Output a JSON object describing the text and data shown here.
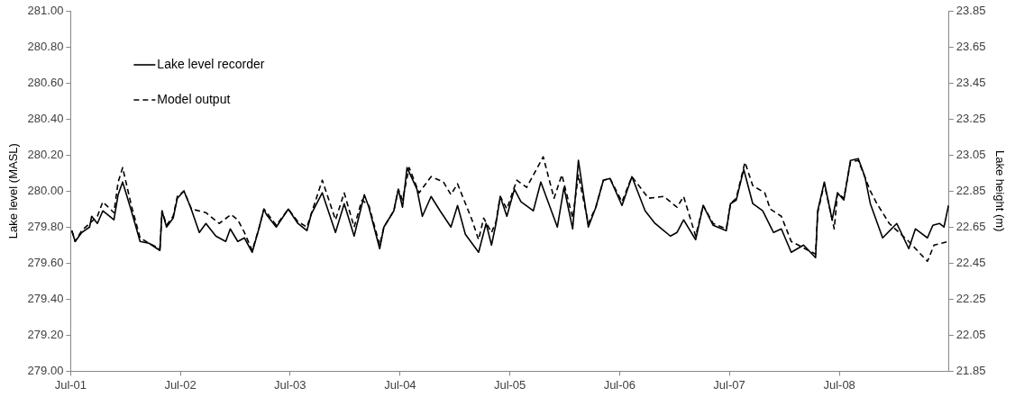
{
  "chart_data": {
    "type": "line",
    "ylabel": "Lake level (MASL)",
    "y2label": "Lake height (m)",
    "legend": "top left",
    "grid": false,
    "marker": "none",
    "xlim": [
      "2001-07-01",
      "2009-07-01"
    ],
    "xticks": [
      {
        "value": "2001-07-01",
        "label": "Jul-01"
      },
      {
        "value": "2002-07-01",
        "label": "Jul-02"
      },
      {
        "value": "2003-07-01",
        "label": "Jul-03"
      },
      {
        "value": "2004-07-01",
        "label": "Jul-04"
      },
      {
        "value": "2005-07-01",
        "label": "Jul-05"
      },
      {
        "value": "2006-07-01",
        "label": "Jul-06"
      },
      {
        "value": "2007-07-01",
        "label": "Jul-07"
      },
      {
        "value": "2008-07-01",
        "label": "Jul-08"
      }
    ],
    "ylim": [
      279,
      281
    ],
    "yticks": [
      {
        "value": 279,
        "label": "279.00"
      },
      {
        "value": 279.2,
        "label": "279.20"
      },
      {
        "value": 279.4,
        "label": "279.40"
      },
      {
        "value": 279.6,
        "label": "279.60"
      },
      {
        "value": 279.8,
        "label": "279.80"
      },
      {
        "value": 280,
        "label": "280.00"
      },
      {
        "value": 280.2,
        "label": "280.20"
      },
      {
        "value": 280.4,
        "label": "280.40"
      },
      {
        "value": 280.6,
        "label": "280.60"
      },
      {
        "value": 280.8,
        "label": "280.80"
      },
      {
        "value": 281,
        "label": "281.00"
      }
    ],
    "y2lim": [
      21.85,
      23.85
    ],
    "y2ticks": [
      21.85,
      22.05,
      22.25,
      22.45,
      22.65,
      22.85,
      23.05,
      23.25,
      23.45,
      23.65,
      23.85
    ],
    "series": [
      {
        "name": "Lake level recorder",
        "color": "#000000",
        "line_style": "solid",
        "x": [
          "2001-07-05",
          "2001-07-16",
          "2001-08-07",
          "2001-09-02",
          "2001-09-09",
          "2001-09-28",
          "2001-10-16",
          "2001-11-22",
          "2001-12-06",
          "2001-12-21",
          "2002-01-01",
          "2002-01-19",
          "2002-02-17",
          "2002-03-19",
          "2002-04-24",
          "2002-05-01",
          "2002-05-16",
          "2002-06-07",
          "2002-06-21",
          "2002-07-13",
          "2002-08-04",
          "2002-09-02",
          "2002-09-24",
          "2002-10-27",
          "2002-11-29",
          "2002-12-14",
          "2003-01-08",
          "2003-01-30",
          "2003-02-25",
          "2003-03-19",
          "2003-04-05",
          "2003-04-13",
          "2003-05-16",
          "2003-06-25",
          "2003-07-27",
          "2003-08-26",
          "2003-09-09",
          "2003-10-16",
          "2003-11-29",
          "2003-12-28",
          "2004-01-30",
          "2004-03-04",
          "2004-03-19",
          "2004-04-24",
          "2004-05-08",
          "2004-06-10",
          "2004-06-25",
          "2004-07-09",
          "2004-07-24",
          "2004-08-26",
          "2004-09-13",
          "2004-10-12",
          "2004-11-11",
          "2004-12-17",
          "2005-01-08",
          "2005-02-03",
          "2005-03-19",
          "2005-04-13",
          "2005-05-01",
          "2005-05-16",
          "2005-05-30",
          "2005-06-21",
          "2005-07-16",
          "2005-08-07",
          "2005-09-17",
          "2005-10-12",
          "2005-12-06",
          "2005-12-28",
          "2006-01-26",
          "2006-02-14",
          "2006-03-19",
          "2006-04-13",
          "2006-05-08",
          "2006-05-30",
          "2006-07-09",
          "2006-08-11",
          "2006-09-24",
          "2006-10-27",
          "2006-12-17",
          "2007-01-08",
          "2007-01-30",
          "2007-03-11",
          "2007-04-05",
          "2007-05-08",
          "2007-06-21",
          "2007-07-05",
          "2007-07-24",
          "2007-08-18",
          "2007-09-17",
          "2007-10-20",
          "2007-11-25",
          "2007-12-21",
          "2008-01-23",
          "2008-03-04",
          "2008-04-13",
          "2008-04-20",
          "2008-05-12",
          "2008-06-07",
          "2008-06-25",
          "2008-07-16",
          "2008-08-07",
          "2008-09-02",
          "2008-09-24",
          "2008-10-12",
          "2008-11-22",
          "2009-01-08",
          "2009-02-17",
          "2009-03-11",
          "2009-04-20",
          "2009-05-08",
          "2009-05-30",
          "2009-06-14",
          "2009-06-29"
        ],
        "values": [
          279.78,
          279.72,
          279.77,
          279.8,
          279.86,
          279.82,
          279.89,
          279.84,
          279.98,
          280.05,
          279.99,
          279.89,
          279.72,
          279.71,
          279.67,
          279.89,
          279.8,
          279.85,
          279.96,
          280.0,
          279.91,
          279.77,
          279.82,
          279.75,
          279.72,
          279.79,
          279.72,
          279.74,
          279.66,
          279.79,
          279.9,
          279.87,
          279.8,
          279.9,
          279.82,
          279.78,
          279.87,
          279.99,
          279.77,
          279.93,
          279.75,
          279.98,
          279.91,
          279.68,
          279.8,
          279.89,
          280.01,
          279.91,
          280.13,
          280.01,
          279.86,
          279.97,
          279.89,
          279.8,
          279.92,
          279.76,
          279.66,
          279.82,
          279.7,
          279.82,
          279.97,
          279.86,
          280.01,
          279.94,
          279.89,
          280.05,
          279.8,
          280.02,
          279.79,
          280.17,
          279.8,
          279.91,
          280.06,
          280.07,
          279.92,
          280.08,
          279.89,
          279.82,
          279.75,
          279.77,
          279.84,
          279.73,
          279.92,
          279.81,
          279.78,
          279.93,
          279.95,
          280.12,
          279.93,
          279.89,
          279.77,
          279.79,
          279.66,
          279.7,
          279.63,
          279.89,
          280.05,
          279.84,
          279.99,
          279.95,
          280.17,
          280.18,
          280.08,
          279.93,
          279.74,
          279.82,
          279.68,
          279.79,
          279.74,
          279.81,
          279.82,
          279.8,
          279.92
        ]
      },
      {
        "name": "Model output",
        "color": "#000000",
        "line_style": "dashed",
        "x": [
          "2001-07-05",
          "2001-07-16",
          "2001-08-07",
          "2001-09-02",
          "2001-09-28",
          "2001-10-16",
          "2001-11-22",
          "2001-12-06",
          "2001-12-21",
          "2002-01-01",
          "2002-01-19",
          "2002-02-17",
          "2002-03-19",
          "2002-04-24",
          "2002-05-01",
          "2002-05-16",
          "2002-06-07",
          "2002-06-21",
          "2002-07-13",
          "2002-08-07",
          "2002-09-24",
          "2002-11-07",
          "2002-12-17",
          "2003-01-08",
          "2003-01-30",
          "2003-02-25",
          "2003-03-19",
          "2003-04-05",
          "2003-05-16",
          "2003-06-25",
          "2003-07-27",
          "2003-08-26",
          "2003-10-16",
          "2003-11-29",
          "2003-12-28",
          "2004-01-30",
          "2004-02-25",
          "2004-03-19",
          "2004-04-24",
          "2004-05-08",
          "2004-06-10",
          "2004-06-25",
          "2004-07-09",
          "2004-07-31",
          "2004-09-02",
          "2004-10-12",
          "2004-11-22",
          "2004-12-17",
          "2005-01-08",
          "2005-02-25",
          "2005-03-19",
          "2005-04-05",
          "2005-05-01",
          "2005-05-16",
          "2005-05-30",
          "2005-06-21",
          "2005-07-24",
          "2005-08-26",
          "2005-10-20",
          "2005-11-25",
          "2005-12-21",
          "2006-01-26",
          "2006-02-14",
          "2006-03-19",
          "2006-04-13",
          "2006-05-08",
          "2006-05-30",
          "2006-07-09",
          "2006-08-11",
          "2006-10-05",
          "2006-11-25",
          "2007-01-08",
          "2007-01-30",
          "2007-03-11",
          "2007-04-05",
          "2007-05-08",
          "2007-06-21",
          "2007-07-05",
          "2007-07-24",
          "2007-08-22",
          "2007-09-17",
          "2007-10-27",
          "2007-11-14",
          "2007-12-21",
          "2008-01-23",
          "2008-04-13",
          "2008-04-20",
          "2008-05-12",
          "2008-06-14",
          "2008-06-25",
          "2008-07-16",
          "2008-08-07",
          "2008-09-02",
          "2008-10-12",
          "2008-11-03",
          "2008-12-14",
          "2009-02-17",
          "2009-04-20",
          "2009-05-12",
          "2009-06-29"
        ],
        "values": [
          279.78,
          279.72,
          279.78,
          279.82,
          279.86,
          279.94,
          279.88,
          280.05,
          280.13,
          280.05,
          279.92,
          279.74,
          279.71,
          279.68,
          279.89,
          279.81,
          279.86,
          279.97,
          280.0,
          279.9,
          279.88,
          279.82,
          279.87,
          279.84,
          279.77,
          279.67,
          279.79,
          279.9,
          279.81,
          279.9,
          279.83,
          279.8,
          280.06,
          279.84,
          279.99,
          279.8,
          279.95,
          279.92,
          279.7,
          279.8,
          279.89,
          280.01,
          279.95,
          280.13,
          279.99,
          280.08,
          280.05,
          279.98,
          280.04,
          279.84,
          279.73,
          279.85,
          279.77,
          279.83,
          279.97,
          279.9,
          280.06,
          280.02,
          280.19,
          279.96,
          280.09,
          279.85,
          280.09,
          279.82,
          279.91,
          280.06,
          280.07,
          279.94,
          280.08,
          279.96,
          279.97,
          279.91,
          279.97,
          279.75,
          279.92,
          279.82,
          279.79,
          279.93,
          279.96,
          280.16,
          280.03,
          279.99,
          279.9,
          279.86,
          279.72,
          279.65,
          279.88,
          280.04,
          279.79,
          279.99,
          279.96,
          280.16,
          280.17,
          280.0,
          279.93,
          279.82,
          279.72,
          279.61,
          279.7,
          279.72
        ]
      }
    ]
  }
}
